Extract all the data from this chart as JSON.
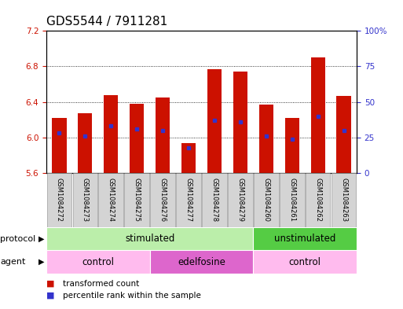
{
  "title": "GDS5544 / 7911281",
  "samples": [
    "GSM1084272",
    "GSM1084273",
    "GSM1084274",
    "GSM1084275",
    "GSM1084276",
    "GSM1084277",
    "GSM1084278",
    "GSM1084279",
    "GSM1084260",
    "GSM1084261",
    "GSM1084262",
    "GSM1084263"
  ],
  "bar_bottoms": [
    5.6,
    5.6,
    5.6,
    5.6,
    5.6,
    5.6,
    5.6,
    5.6,
    5.6,
    5.6,
    5.6,
    5.6
  ],
  "bar_tops": [
    6.22,
    6.27,
    6.48,
    6.38,
    6.45,
    5.94,
    6.77,
    6.74,
    6.37,
    6.22,
    6.9,
    6.47
  ],
  "percentile_values": [
    28,
    26,
    33,
    31,
    30,
    18,
    37,
    36,
    26,
    24,
    40,
    30
  ],
  "ylim_left": [
    5.6,
    7.2
  ],
  "ylim_right": [
    0,
    100
  ],
  "yticks_left": [
    5.6,
    6.0,
    6.4,
    6.8,
    7.2
  ],
  "yticks_right": [
    0,
    25,
    50,
    75,
    100
  ],
  "bar_color": "#cc1100",
  "percentile_color": "#3333cc",
  "background_color": "#ffffff",
  "protocol_groups": [
    {
      "label": "stimulated",
      "start": 0,
      "end": 8,
      "color": "#bbeeaa"
    },
    {
      "label": "unstimulated",
      "start": 8,
      "end": 12,
      "color": "#55cc44"
    }
  ],
  "agent_groups": [
    {
      "label": "control",
      "start": 0,
      "end": 4,
      "color": "#ffbbee"
    },
    {
      "label": "edelfosine",
      "start": 4,
      "end": 8,
      "color": "#dd66cc"
    },
    {
      "label": "control",
      "start": 8,
      "end": 12,
      "color": "#ffbbee"
    }
  ],
  "legend_items": [
    {
      "label": "transformed count",
      "color": "#cc1100"
    },
    {
      "label": "percentile rank within the sample",
      "color": "#3333cc"
    }
  ],
  "bar_width": 0.55,
  "title_fontsize": 11,
  "tick_fontsize": 7.5,
  "label_fontsize": 8.5,
  "row_label_fontsize": 8,
  "sample_fontsize": 6.0
}
